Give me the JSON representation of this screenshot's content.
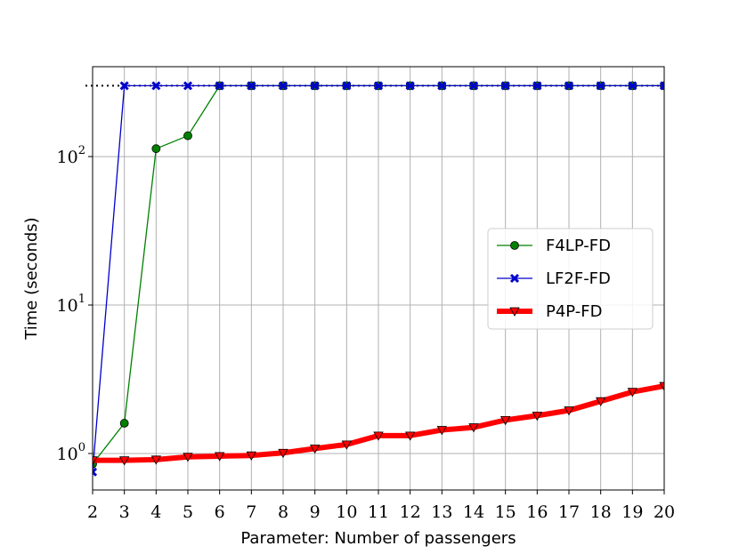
{
  "chart_data": {
    "type": "line",
    "x_label": "Parameter: Number of passengers",
    "y_label": "Time (seconds)",
    "x": [
      2,
      3,
      4,
      5,
      6,
      7,
      8,
      9,
      10,
      11,
      12,
      13,
      14,
      15,
      16,
      17,
      18,
      19,
      20
    ],
    "series": [
      {
        "name": "F4LP-FD",
        "color": "#008000",
        "marker": "circle",
        "values": [
          0.85,
          1.6,
          113,
          138,
          300,
          300,
          300,
          300,
          300,
          300,
          300,
          300,
          300,
          300,
          300,
          300,
          300,
          300,
          300
        ]
      },
      {
        "name": "LF2F-FD",
        "color": "#0000cc",
        "marker": "x",
        "values": [
          0.75,
          300,
          300,
          300,
          300,
          300,
          300,
          300,
          300,
          300,
          300,
          300,
          300,
          300,
          300,
          300,
          300,
          300,
          300
        ]
      },
      {
        "name": "P4P-FD",
        "color": "#ff0000",
        "marker": "triangle-down",
        "values": [
          0.9,
          0.9,
          0.91,
          0.95,
          0.96,
          0.97,
          1.01,
          1.08,
          1.15,
          1.32,
          1.32,
          1.44,
          1.5,
          1.68,
          1.8,
          1.95,
          2.25,
          2.6,
          2.85
        ]
      }
    ],
    "hline": 300,
    "xlim": [
      2,
      20
    ],
    "xticks": [
      2,
      3,
      4,
      5,
      6,
      7,
      8,
      9,
      10,
      11,
      12,
      13,
      14,
      15,
      16,
      17,
      18,
      19,
      20
    ],
    "ylim": [
      0.568,
      403
    ],
    "yticks": [
      {
        "value": 1,
        "label": "10^0"
      },
      {
        "value": 10,
        "label": "10^1"
      },
      {
        "value": 100,
        "label": "10^2"
      }
    ],
    "yscale": "log",
    "grid": true,
    "legend": "right"
  }
}
